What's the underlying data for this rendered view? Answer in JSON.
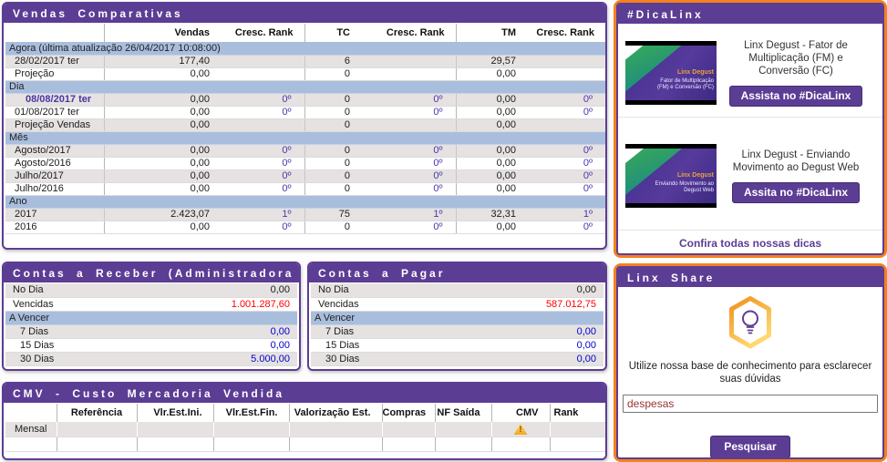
{
  "colors": {
    "purple": "#5c3d94",
    "orange": "#f4811e",
    "band_blue": "#a9bedd",
    "row_gray": "#e5e2e1",
    "negative_red": "#ff0000",
    "due_blue": "#0000cc",
    "rank_purple": "#5134ad"
  },
  "vendas": {
    "title": "Vendas Comparativas",
    "headers": [
      "",
      "Vendas",
      "Cresc. Rank",
      "TC",
      "Cresc. Rank",
      "TM",
      "Cresc. Rank"
    ],
    "rows": [
      {
        "type": "band",
        "label": "Agora (última atualização 26/04/2017 10:08:00)"
      },
      {
        "type": "row",
        "shade": "gray",
        "label": "28/02/2017 ter",
        "cells": [
          "177,40",
          "",
          "6",
          "",
          "29,57",
          ""
        ]
      },
      {
        "type": "row",
        "shade": "white",
        "label": "Projeção",
        "cells": [
          "0,00",
          "",
          "0",
          "",
          "0,00",
          ""
        ]
      },
      {
        "type": "band",
        "label": "Dia"
      },
      {
        "type": "row",
        "shade": "gray",
        "label": "08/08/2017 ter",
        "link": true,
        "cells": [
          "0,00",
          "0º",
          "0",
          "0º",
          "0,00",
          "0º"
        ]
      },
      {
        "type": "row",
        "shade": "white",
        "label": "01/08/2017 ter",
        "cells": [
          "0,00",
          "0º",
          "0",
          "0º",
          "0,00",
          "0º"
        ]
      },
      {
        "type": "row",
        "shade": "gray",
        "label": "Projeção Vendas",
        "cells": [
          "0,00",
          "",
          "0",
          "",
          "0,00",
          ""
        ]
      },
      {
        "type": "band",
        "label": "Mês"
      },
      {
        "type": "row",
        "shade": "gray",
        "label": "Agosto/2017",
        "cells": [
          "0,00",
          "0º",
          "0",
          "0º",
          "0,00",
          "0º"
        ]
      },
      {
        "type": "row",
        "shade": "white",
        "label": "Agosto/2016",
        "cells": [
          "0,00",
          "0º",
          "0",
          "0º",
          "0,00",
          "0º"
        ]
      },
      {
        "type": "row",
        "shade": "gray",
        "label": "Julho/2017",
        "cells": [
          "0,00",
          "0º",
          "0",
          "0º",
          "0,00",
          "0º"
        ]
      },
      {
        "type": "row",
        "shade": "white",
        "label": "Julho/2016",
        "cells": [
          "0,00",
          "0º",
          "0",
          "0º",
          "0,00",
          "0º"
        ]
      },
      {
        "type": "band",
        "label": "Ano"
      },
      {
        "type": "row",
        "shade": "gray",
        "label": "2017",
        "cells": [
          "2.423,07",
          "1º",
          "75",
          "1º",
          "32,31",
          "1º"
        ]
      },
      {
        "type": "row",
        "shade": "white",
        "label": "2016",
        "cells": [
          "0,00",
          "0º",
          "0",
          "0º",
          "0,00",
          "0º"
        ]
      }
    ]
  },
  "receber": {
    "title": "Contas a Receber (Administradora",
    "rows": [
      {
        "type": "row",
        "shade": "gray",
        "label": "No Dia",
        "value": "0,00",
        "color": "black"
      },
      {
        "type": "row",
        "shade": "white",
        "label": "Vencidas",
        "value": "1.001.287,60",
        "color": "red"
      },
      {
        "type": "band",
        "label": "A Vencer"
      },
      {
        "type": "row",
        "shade": "gray",
        "label": "7 Dias",
        "indent": true,
        "value": "0,00",
        "color": "blue"
      },
      {
        "type": "row",
        "shade": "white",
        "label": "15 Dias",
        "indent": true,
        "value": "0,00",
        "color": "blue"
      },
      {
        "type": "row",
        "shade": "gray",
        "label": "30 Dias",
        "indent": true,
        "value": "5.000,00",
        "color": "blue"
      }
    ]
  },
  "pagar": {
    "title": "Contas a Pagar",
    "rows": [
      {
        "type": "row",
        "shade": "gray",
        "label": "No Dia",
        "value": "0,00",
        "color": "black"
      },
      {
        "type": "row",
        "shade": "white",
        "label": "Vencidas",
        "value": "587.012,75",
        "color": "red"
      },
      {
        "type": "band",
        "label": "A Vencer"
      },
      {
        "type": "row",
        "shade": "gray",
        "label": "7 Dias",
        "indent": true,
        "value": "0,00",
        "color": "blue"
      },
      {
        "type": "row",
        "shade": "white",
        "label": "15 Dias",
        "indent": true,
        "value": "0,00",
        "color": "blue"
      },
      {
        "type": "row",
        "shade": "gray",
        "label": "30 Dias",
        "indent": true,
        "value": "0,00",
        "color": "blue"
      }
    ]
  },
  "cmv": {
    "title": "CMV - Custo Mercadoria Vendida",
    "headers": [
      "",
      "Referência",
      "Vlr.Est.Ini.",
      "Vlr.Est.Fin.",
      "Valorização Est.",
      "Compras",
      "NF Saída",
      "CMV",
      "Rank"
    ],
    "rows": [
      {
        "shade": "gray",
        "label": "Mensal",
        "warning_col": "CMV"
      },
      {
        "shade": "white",
        "label": ""
      }
    ]
  },
  "dicalinx": {
    "title": "#DicaLinx",
    "items": [
      {
        "thumb_title": "Linx Degust",
        "thumb_caption": "Fator de Multiplicação (FM) e Conversão (FC)",
        "title": "Linx Degust - Fator de Multiplicação (FM) e Conversão (FC)",
        "button": "Assista no #DicaLinx"
      },
      {
        "thumb_title": "Linx Degust",
        "thumb_caption": "Enviando Movimento ao Degust Web",
        "title": "Linx Degust - Enviando Movimento ao Degust Web",
        "button": "Assita no #DicaLinx"
      }
    ],
    "footer_link": "Confira todas nossas dicas"
  },
  "share": {
    "title": "Linx Share",
    "description": "Utilize nossa base de conhecimento para esclarecer suas dúvidas",
    "search_value": "despesas",
    "button": "Pesquisar"
  }
}
